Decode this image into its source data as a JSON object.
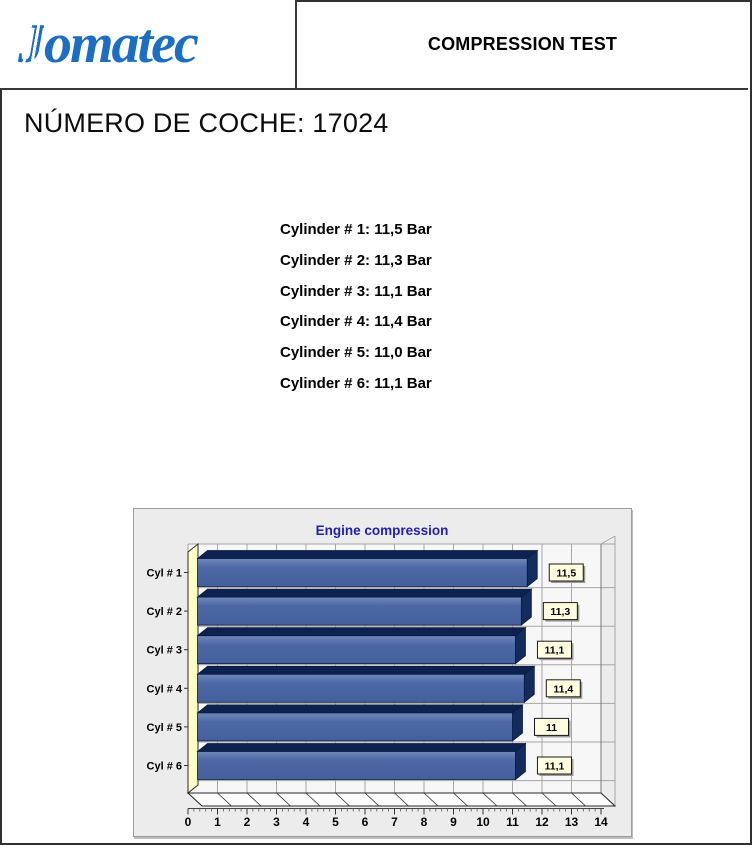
{
  "header": {
    "logo": "Jomatec",
    "title": "COMPRESSION TEST"
  },
  "car_number": "NÚMERO DE COCHE: 17024",
  "readings": [
    "Cylinder # 1: 11,5 Bar",
    "Cylinder # 2: 11,3 Bar",
    "Cylinder # 3: 11,1 Bar",
    "Cylinder # 4: 11,4 Bar",
    "Cylinder # 5: 11,0 Bar",
    "Cylinder # 6: 11,1 Bar"
  ],
  "chart_data": {
    "type": "bar",
    "orientation": "horizontal",
    "style": "3d",
    "title": "Engine compression",
    "categories": [
      "Cyl # 1",
      "Cyl # 2",
      "Cyl # 3",
      "Cyl # 4",
      "Cyl # 5",
      "Cyl # 6"
    ],
    "values": [
      11.5,
      11.3,
      11.1,
      11.4,
      11.0,
      11.1
    ],
    "value_labels": [
      "11,5",
      "11,3",
      "11,1",
      "11,4",
      "11",
      "11,1"
    ],
    "unit": "Bar",
    "xlim": [
      0,
      14
    ],
    "x_ticks": [
      0,
      1,
      2,
      3,
      4,
      5,
      6,
      7,
      8,
      9,
      10,
      11,
      12,
      13,
      14
    ],
    "grid": true,
    "legend": false,
    "colors": {
      "title": "#1f1fb0",
      "chart_bg": "#ececec",
      "plot_bg": "#f7f7f7",
      "gridline": "#a6a6a6",
      "bar_front": "#4c68a5",
      "bar_front_light": "#7089ba",
      "bar_front_deep": "#44609c",
      "bar_top": "#0d2250",
      "bar_side": "#142c5c",
      "bar_outline": "#091b40",
      "wall": "#ffffc4",
      "floor": "#fcfcfc",
      "value_box_bg": "#ffffe0",
      "value_box_border": "#1a1a1a",
      "axis_text": "#000000",
      "logo_blue": "#1b6ec2"
    }
  }
}
